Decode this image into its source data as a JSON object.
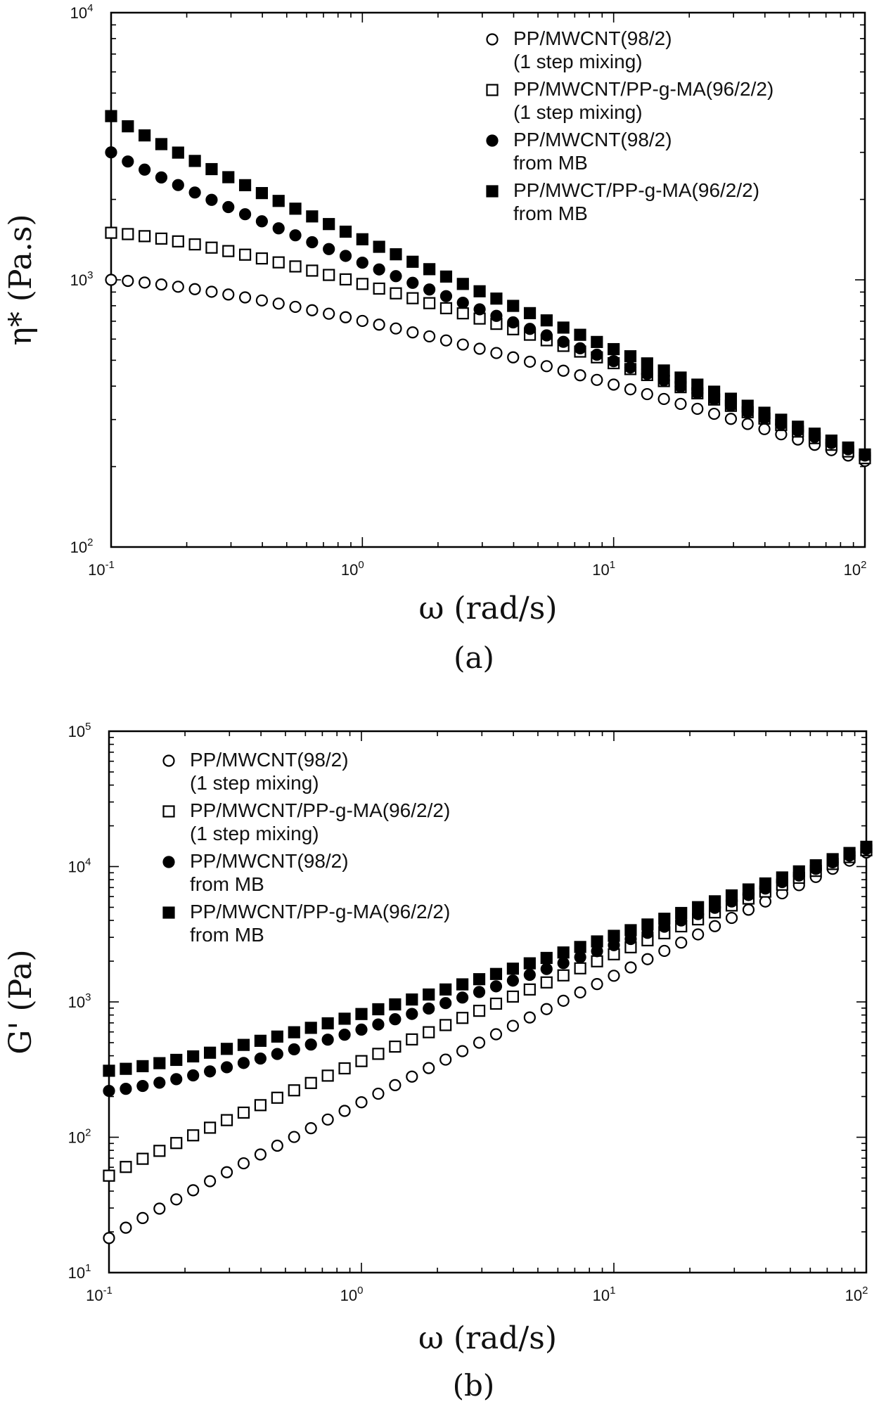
{
  "chart_data": [
    {
      "type": "scatter",
      "panel": "(a)",
      "xlabel": "ω (rad/s)",
      "ylabel": "η* (Pa.s)",
      "xscale": "log",
      "yscale": "log",
      "xlim": [
        0.1,
        100
      ],
      "ylim": [
        100,
        10000
      ],
      "x_ticks": [
        {
          "base": "10",
          "exp": "-1"
        },
        {
          "base": "10",
          "exp": "0"
        },
        {
          "base": "10",
          "exp": "1"
        },
        {
          "base": "10",
          "exp": "2"
        }
      ],
      "y_ticks": [
        {
          "base": "10",
          "exp": "2"
        },
        {
          "base": "10",
          "exp": "3"
        },
        {
          "base": "10",
          "exp": "4"
        }
      ],
      "grid": false,
      "legend_position": "top-right",
      "series": [
        {
          "name": "PP/MWCNT(98/2)",
          "name2": "(1 step mixing)",
          "marker": "open-circle",
          "start": 1000,
          "end": 210
        },
        {
          "name": "PP/MWCNT/PP-g-MA(96/2/2)",
          "name2": "(1 step mixing)",
          "marker": "open-square",
          "start": 1500,
          "end": 215
        },
        {
          "name": "PP/MWCNT(98/2)",
          "name2": "from MB",
          "marker": "filled-circle",
          "start": 3000,
          "end": 220
        },
        {
          "name": "PP/MWCT/PP-g-MA(96/2/2)",
          "name2": "from MB",
          "marker": "filled-square",
          "start": 4100,
          "end": 222
        }
      ]
    },
    {
      "type": "scatter",
      "panel": "(b)",
      "xlabel": "ω (rad/s)",
      "ylabel": "G' (Pa)",
      "xscale": "log",
      "yscale": "log",
      "xlim": [
        0.1,
        100
      ],
      "ylim": [
        10,
        100000
      ],
      "x_ticks": [
        {
          "base": "10",
          "exp": "-1"
        },
        {
          "base": "10",
          "exp": "0"
        },
        {
          "base": "10",
          "exp": "1"
        },
        {
          "base": "10",
          "exp": "2"
        }
      ],
      "y_ticks": [
        {
          "base": "10",
          "exp": "1"
        },
        {
          "base": "10",
          "exp": "2"
        },
        {
          "base": "10",
          "exp": "3"
        },
        {
          "base": "10",
          "exp": "4"
        },
        {
          "base": "10",
          "exp": "5"
        }
      ],
      "grid": false,
      "legend_position": "top-left",
      "series": [
        {
          "name": "PP/MWCNT(98/2)",
          "name2": "(1 step mixing)",
          "marker": "open-circle",
          "start": 18,
          "end": 12700
        },
        {
          "name": "PP/MWCNT/PP-g-MA(96/2/2)",
          "name2": "(1 step mixing)",
          "marker": "open-square",
          "start": 52,
          "end": 13200
        },
        {
          "name": "PP/MWCNT(98/2)",
          "name2": "from MB",
          "marker": "filled-circle",
          "start": 220,
          "end": 13500
        },
        {
          "name": "PP/MWCNT/PP-g-MA(96/2/2)",
          "name2": "from MB",
          "marker": "filled-square",
          "start": 310,
          "end": 14000
        }
      ]
    }
  ]
}
